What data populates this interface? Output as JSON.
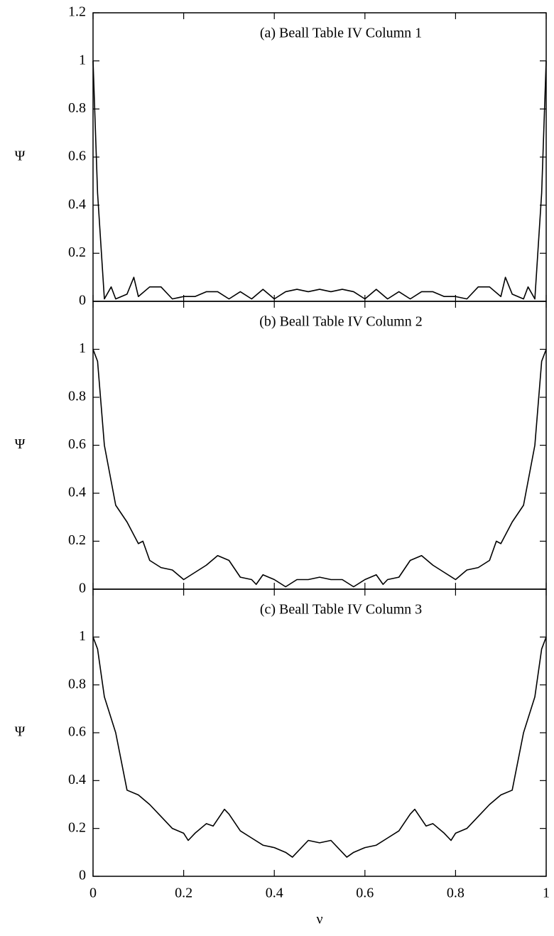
{
  "chart_data": [
    {
      "type": "line",
      "title": "(a) Beall Table IV Column 1",
      "y_label": "Ψ",
      "x": [
        0,
        0.01,
        0.025,
        0.04,
        0.05,
        0.075,
        0.09,
        0.1,
        0.125,
        0.15,
        0.175,
        0.2,
        0.225,
        0.25,
        0.275,
        0.3,
        0.325,
        0.35,
        0.375,
        0.4,
        0.425,
        0.45,
        0.475,
        0.5,
        0.525,
        0.55,
        0.575,
        0.6,
        0.625,
        0.65,
        0.675,
        0.7,
        0.725,
        0.75,
        0.775,
        0.8,
        0.825,
        0.85,
        0.875,
        0.9,
        0.91,
        0.925,
        0.95,
        0.96,
        0.975,
        0.99,
        1
      ],
      "values": [
        1,
        0.45,
        0.01,
        0.06,
        0.01,
        0.03,
        0.1,
        0.02,
        0.06,
        0.06,
        0.01,
        0.02,
        0.02,
        0.04,
        0.04,
        0.01,
        0.04,
        0.01,
        0.05,
        0.01,
        0.04,
        0.05,
        0.04,
        0.05,
        0.04,
        0.05,
        0.04,
        0.01,
        0.05,
        0.01,
        0.04,
        0.01,
        0.04,
        0.04,
        0.02,
        0.02,
        0.01,
        0.06,
        0.06,
        0.02,
        0.1,
        0.03,
        0.01,
        0.06,
        0.01,
        0.45,
        1
      ],
      "color": "#000000",
      "xlim": [
        0,
        1
      ],
      "ylim": [
        0,
        1.2
      ],
      "yticks": [
        0,
        0.2,
        0.4,
        0.6,
        0.8,
        1,
        1.2
      ]
    },
    {
      "type": "line",
      "title": "(b) Beall Table IV Column 2",
      "y_label": "Ψ",
      "x": [
        0,
        0.01,
        0.025,
        0.05,
        0.075,
        0.1,
        0.11,
        0.125,
        0.15,
        0.175,
        0.2,
        0.225,
        0.25,
        0.275,
        0.3,
        0.325,
        0.35,
        0.36,
        0.375,
        0.4,
        0.425,
        0.45,
        0.475,
        0.5,
        0.525,
        0.55,
        0.575,
        0.6,
        0.625,
        0.64,
        0.65,
        0.675,
        0.7,
        0.725,
        0.75,
        0.775,
        0.8,
        0.825,
        0.85,
        0.875,
        0.89,
        0.9,
        0.925,
        0.95,
        0.975,
        0.99,
        1
      ],
      "values": [
        1,
        0.95,
        0.6,
        0.35,
        0.28,
        0.19,
        0.2,
        0.12,
        0.09,
        0.08,
        0.04,
        0.07,
        0.1,
        0.14,
        0.12,
        0.05,
        0.04,
        0.02,
        0.06,
        0.04,
        0.01,
        0.04,
        0.04,
        0.05,
        0.04,
        0.04,
        0.01,
        0.04,
        0.06,
        0.02,
        0.04,
        0.05,
        0.12,
        0.14,
        0.1,
        0.07,
        0.04,
        0.08,
        0.09,
        0.12,
        0.2,
        0.19,
        0.28,
        0.35,
        0.6,
        0.95,
        1
      ],
      "color": "#000000",
      "xlim": [
        0,
        1
      ],
      "ylim": [
        0,
        1.2
      ],
      "yticks": [
        0,
        0.2,
        0.4,
        0.6,
        0.8,
        1
      ]
    },
    {
      "type": "line",
      "title": "(c) Beall Table IV Column 3",
      "y_label": "Ψ",
      "x_label": "ν",
      "x": [
        0,
        0.01,
        0.025,
        0.05,
        0.075,
        0.1,
        0.125,
        0.15,
        0.175,
        0.2,
        0.21,
        0.225,
        0.25,
        0.265,
        0.29,
        0.3,
        0.325,
        0.35,
        0.375,
        0.4,
        0.425,
        0.44,
        0.475,
        0.5,
        0.525,
        0.56,
        0.575,
        0.6,
        0.625,
        0.65,
        0.675,
        0.7,
        0.71,
        0.735,
        0.75,
        0.775,
        0.79,
        0.8,
        0.825,
        0.85,
        0.875,
        0.9,
        0.925,
        0.95,
        0.975,
        0.99,
        1
      ],
      "values": [
        1,
        0.95,
        0.75,
        0.6,
        0.36,
        0.34,
        0.3,
        0.25,
        0.2,
        0.18,
        0.15,
        0.18,
        0.22,
        0.21,
        0.28,
        0.26,
        0.19,
        0.16,
        0.13,
        0.12,
        0.1,
        0.08,
        0.15,
        0.14,
        0.15,
        0.08,
        0.1,
        0.12,
        0.13,
        0.16,
        0.19,
        0.26,
        0.28,
        0.21,
        0.22,
        0.18,
        0.15,
        0.18,
        0.2,
        0.25,
        0.3,
        0.34,
        0.36,
        0.6,
        0.75,
        0.95,
        1
      ],
      "color": "#000000",
      "xlim": [
        0,
        1
      ],
      "ylim": [
        0,
        1.2
      ],
      "yticks": [
        0,
        0.2,
        0.4,
        0.6,
        0.8,
        1
      ],
      "xticks": [
        0,
        0.2,
        0.4,
        0.6,
        0.8,
        1
      ]
    }
  ]
}
